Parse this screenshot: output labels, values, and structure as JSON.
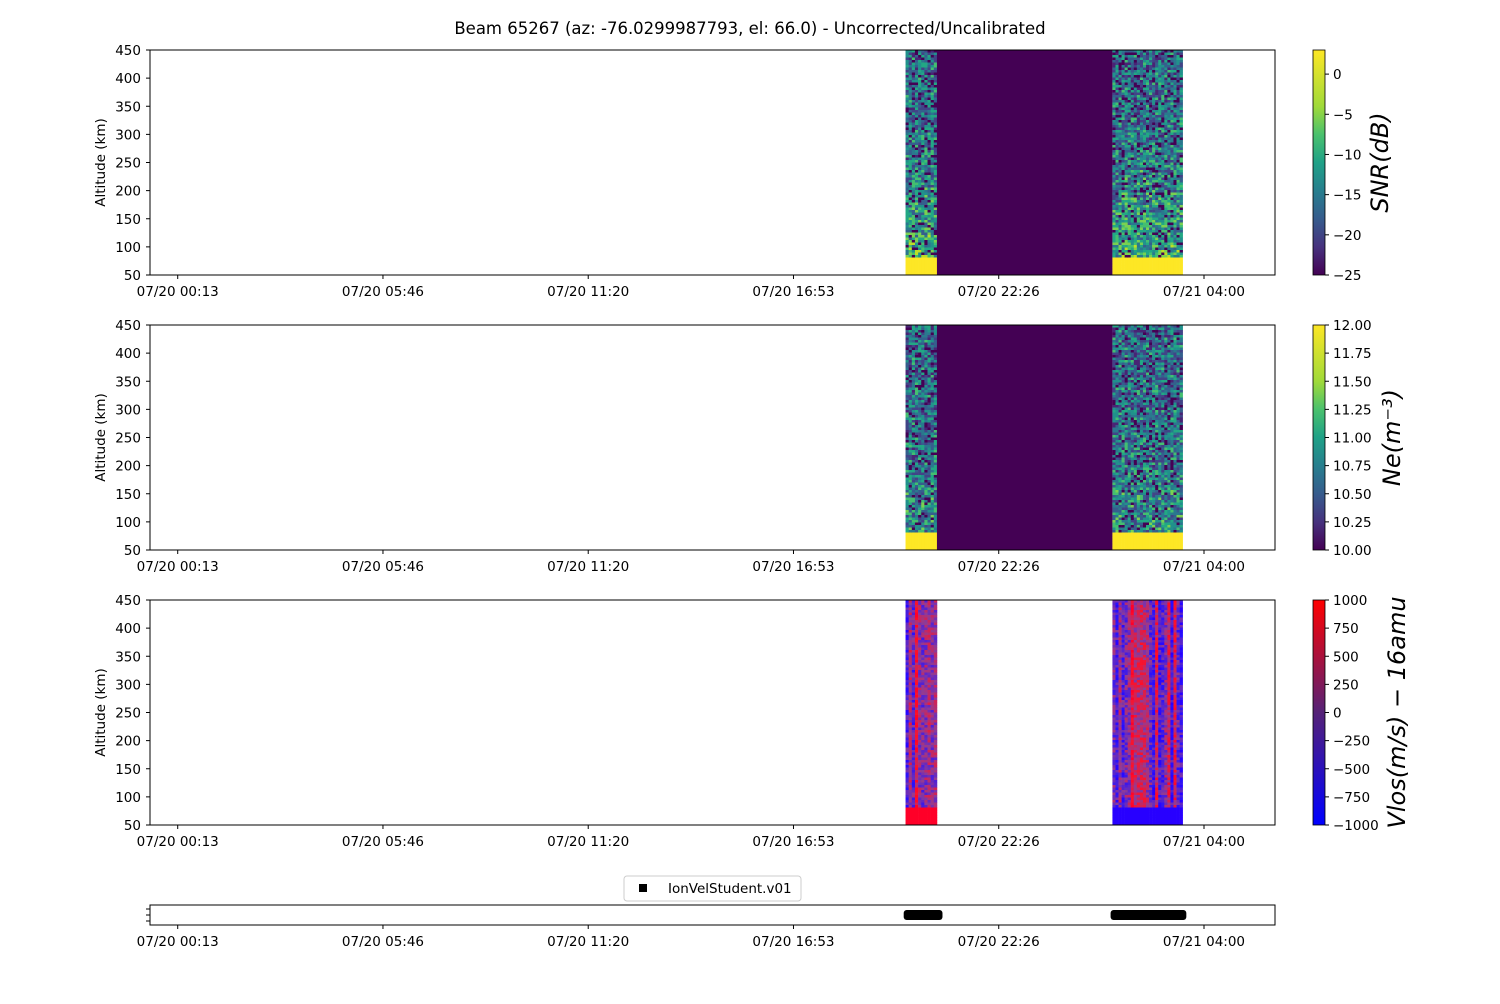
{
  "title": "Beam 65267 (az: -76.0299987793, el: 66.0) - Uncorrected/Uncalibrated",
  "x_ticks": [
    "07/20 00:13",
    "07/20 05:46",
    "07/20 11:20",
    "07/20 16:53",
    "07/20 22:26",
    "07/21 04:00"
  ],
  "y_label": "Altitude (km)",
  "y_ticks": [
    "50",
    "100",
    "150",
    "200",
    "250",
    "300",
    "350",
    "400",
    "450"
  ],
  "panels": [
    {
      "colorbar_label": "SNR(dB)",
      "colorbar_ticks": [
        "0",
        "−5",
        "−10",
        "−15",
        "−20",
        "−25"
      ]
    },
    {
      "colorbar_label": "Ne(m⁻³)",
      "colorbar_ticks": [
        "12.00",
        "11.75",
        "11.50",
        "11.25",
        "11.00",
        "10.75",
        "10.50",
        "10.25",
        "10.00"
      ]
    },
    {
      "colorbar_label": "Vlos(m/s) − 16amu",
      "colorbar_ticks": [
        "1000",
        "750",
        "500",
        "250",
        "0",
        "−250",
        "−500",
        "−750",
        "−1000"
      ]
    }
  ],
  "legend": {
    "label": "IonVelStudent.v01"
  },
  "colors": {
    "viridis_dark": "#440154",
    "viridis_yellow": "#fde725",
    "bwr_red": "#ff0000",
    "bwr_blue": "#0000ff",
    "marker": "#000000"
  },
  "chart_data": [
    {
      "type": "heatmap",
      "name": "SNR",
      "x_range_hours": [
        -0.75,
        29.7
      ],
      "ylim": [
        50,
        450
      ],
      "zlim": [
        -25,
        3
      ],
      "colormap": "viridis",
      "data_blocks": [
        {
          "t_start_hours": 19.7,
          "t_end_hours": 20.55,
          "kind": "measured",
          "low_alt_saturated_below_km": 83
        },
        {
          "t_start_hours": 20.55,
          "t_end_hours": 25.3,
          "kind": "filled",
          "value": -25
        },
        {
          "t_start_hours": 25.3,
          "t_end_hours": 27.2,
          "kind": "measured",
          "low_alt_saturated_below_km": 83
        }
      ]
    },
    {
      "type": "heatmap",
      "name": "Ne",
      "x_range_hours": [
        -0.75,
        29.7
      ],
      "ylim": [
        50,
        450
      ],
      "zlim": [
        10.0,
        12.0
      ],
      "colormap": "viridis",
      "data_blocks": [
        {
          "t_start_hours": 19.7,
          "t_end_hours": 20.55,
          "kind": "measured",
          "low_alt_saturated_below_km": 83
        },
        {
          "t_start_hours": 20.55,
          "t_end_hours": 25.3,
          "kind": "filled",
          "value": 10.0
        },
        {
          "t_start_hours": 25.3,
          "t_end_hours": 27.2,
          "kind": "measured",
          "low_alt_saturated_below_km": 83
        }
      ]
    },
    {
      "type": "heatmap",
      "name": "Vlos",
      "x_range_hours": [
        -0.75,
        29.7
      ],
      "ylim": [
        50,
        450
      ],
      "zlim": [
        -1000,
        1000
      ],
      "colormap": "bwr",
      "data_blocks": [
        {
          "t_start_hours": 19.7,
          "t_end_hours": 20.55,
          "kind": "measured",
          "low_alt_value": 1000
        },
        {
          "t_start_hours": 25.3,
          "t_end_hours": 27.2,
          "kind": "measured",
          "low_alt_value": -1000
        }
      ]
    },
    {
      "type": "scatter",
      "name": "IonVelStudent.v01",
      "segments_hours": [
        [
          19.65,
          20.7
        ],
        [
          25.25,
          27.3
        ]
      ]
    }
  ]
}
